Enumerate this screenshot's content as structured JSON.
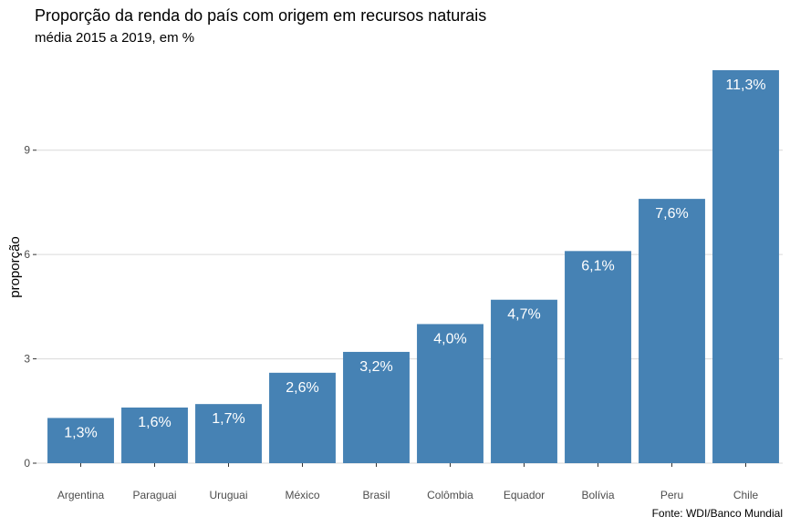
{
  "chart_data": {
    "type": "bar",
    "title": "Proporção da renda do país com origem em recursos naturais",
    "subtitle": "média 2015 a 2019, em %",
    "xlabel": "",
    "ylabel": "proporção",
    "caption": "Fonte: WDI/Banco Mundial",
    "categories": [
      "Argentina",
      "Paraguai",
      "Uruguai",
      "México",
      "Brasil",
      "Colômbia",
      "Equador",
      "Bolívia",
      "Peru",
      "Chile"
    ],
    "values": [
      1.3,
      1.6,
      1.7,
      2.6,
      3.2,
      4.0,
      4.7,
      6.1,
      7.6,
      11.3
    ],
    "data_labels": [
      "1,3%",
      "1,6%",
      "1,7%",
      "2,6%",
      "3,2%",
      "4,0%",
      "4,7%",
      "6,1%",
      "7,6%",
      "11,3%"
    ],
    "y_ticks": [
      0,
      3,
      6,
      9
    ],
    "ylim": [
      0,
      11.3
    ],
    "grid": "horizontal",
    "legend": "none",
    "bar_color": "#4682B4",
    "grid_color": "#d9d9d9"
  }
}
